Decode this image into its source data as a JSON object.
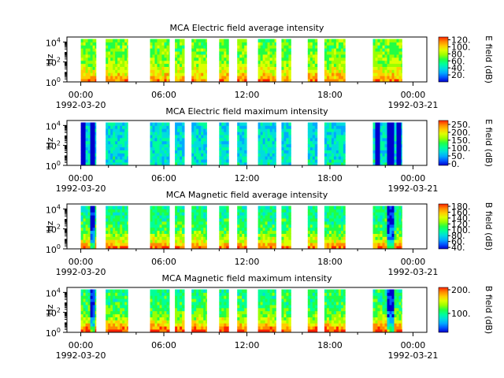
{
  "figure": {
    "background": "#ffffff"
  },
  "colormap": [
    "#0000cc",
    "#0055ff",
    "#00aaff",
    "#00dddd",
    "#00ff99",
    "#22ff44",
    "#99ff00",
    "#ddff00",
    "#ffcc00",
    "#ff8800",
    "#ff2200"
  ],
  "chart_data": [
    {
      "type": "heatmap",
      "title": "MCA  Electric field average intensity",
      "xlabel": "",
      "ylabel": "Hz",
      "x_ticks": [
        "00:00",
        "06:00",
        "12:00",
        "18:00",
        "00:00"
      ],
      "x_hours": [
        0,
        6,
        12,
        18,
        24
      ],
      "x_dates": [
        {
          "label": "1992-03-20",
          "hour": 0
        },
        {
          "label": "1992-03-21",
          "hour": 24
        }
      ],
      "xlim_hours": [
        -1,
        25
      ],
      "y_scale": "log",
      "ylim": [
        1,
        31622
      ],
      "y_ticks": [
        {
          "label": "10",
          "exp": "0",
          "value": 1
        },
        {
          "label": "10",
          "exp": "2",
          "value": 100
        },
        {
          "label": "10",
          "exp": "4",
          "value": 10000
        }
      ],
      "colorbar": {
        "label": "E field (dB)",
        "ticks": [
          "20.",
          "40.",
          "60.",
          "80.",
          "100.",
          "120."
        ],
        "tick_values": [
          20,
          40,
          60,
          80,
          100,
          120
        ],
        "range": [
          0,
          128
        ]
      },
      "data_segments_hours": [
        [
          0.0,
          1.1
        ],
        [
          1.8,
          3.4
        ],
        [
          5.0,
          6.4
        ],
        [
          6.8,
          7.5
        ],
        [
          8.0,
          9.1
        ],
        [
          10.0,
          10.7
        ],
        [
          11.3,
          12.0
        ],
        [
          12.8,
          14.1
        ],
        [
          14.5,
          15.2
        ],
        [
          16.4,
          17.1
        ],
        [
          17.6,
          19.1
        ],
        [
          21.1,
          23.2
        ]
      ],
      "spectrum_level": 0.55,
      "low_freq_enhancement": 0.35,
      "spike_hours": []
    },
    {
      "type": "heatmap",
      "title": "MCA  Electric field maximum intensity",
      "xlabel": "",
      "ylabel": "Hz",
      "x_ticks": [
        "00:00",
        "06:00",
        "12:00",
        "18:00",
        "00:00"
      ],
      "x_hours": [
        0,
        6,
        12,
        18,
        24
      ],
      "x_dates": [
        {
          "label": "1992-03-20",
          "hour": 0
        },
        {
          "label": "1992-03-21",
          "hour": 24
        }
      ],
      "xlim_hours": [
        -1,
        25
      ],
      "y_scale": "log",
      "ylim": [
        1,
        31622
      ],
      "y_ticks": [
        {
          "label": "10",
          "exp": "0",
          "value": 1
        },
        {
          "label": "10",
          "exp": "2",
          "value": 100
        },
        {
          "label": "10",
          "exp": "4",
          "value": 10000
        }
      ],
      "colorbar": {
        "label": "E field (dB)",
        "ticks": [
          "0.",
          "50.",
          "100.",
          "150.",
          "200.",
          "250."
        ],
        "tick_values": [
          0,
          50,
          100,
          150,
          200,
          250
        ],
        "range": [
          -10,
          275
        ]
      },
      "data_segments_hours": [
        [
          0.0,
          1.1
        ],
        [
          1.8,
          3.4
        ],
        [
          5.0,
          6.4
        ],
        [
          6.8,
          7.5
        ],
        [
          8.0,
          9.1
        ],
        [
          10.0,
          10.7
        ],
        [
          11.3,
          12.0
        ],
        [
          12.8,
          14.1
        ],
        [
          14.5,
          15.2
        ],
        [
          16.4,
          17.1
        ],
        [
          17.6,
          19.1
        ],
        [
          21.1,
          23.2
        ]
      ],
      "spectrum_level": 0.3,
      "low_freq_enhancement": 0.05,
      "spike_hours": [
        0.1,
        0.7,
        21.4,
        22.3,
        22.9
      ]
    },
    {
      "type": "heatmap",
      "title": "MCA  Magnetic field average intensity",
      "xlabel": "",
      "ylabel": "Hz",
      "x_ticks": [
        "00:00",
        "06:00",
        "12:00",
        "18:00",
        "00:00"
      ],
      "x_hours": [
        0,
        6,
        12,
        18,
        24
      ],
      "x_dates": [
        {
          "label": "1992-03-20",
          "hour": 0
        },
        {
          "label": "1992-03-21",
          "hour": 24
        }
      ],
      "xlim_hours": [
        -1,
        25
      ],
      "y_scale": "log",
      "ylim": [
        1,
        31622
      ],
      "y_ticks": [
        {
          "label": "10",
          "exp": "0",
          "value": 1
        },
        {
          "label": "10",
          "exp": "2",
          "value": 100
        },
        {
          "label": "10",
          "exp": "4",
          "value": 10000
        }
      ],
      "colorbar": {
        "label": "B field (dB)",
        "ticks": [
          "40.",
          "60.",
          "80.",
          "100.",
          "120.",
          "140.",
          "160.",
          "180."
        ],
        "tick_values": [
          40,
          60,
          80,
          100,
          120,
          140,
          160,
          180
        ],
        "range": [
          35,
          188
        ]
      },
      "data_segments_hours": [
        [
          0.0,
          1.1
        ],
        [
          1.8,
          3.4
        ],
        [
          5.0,
          6.4
        ],
        [
          6.8,
          7.5
        ],
        [
          8.0,
          9.1
        ],
        [
          10.0,
          10.7
        ],
        [
          11.3,
          12.0
        ],
        [
          12.8,
          14.1
        ],
        [
          14.5,
          15.2
        ],
        [
          16.4,
          17.1
        ],
        [
          17.6,
          19.1
        ],
        [
          21.1,
          23.2
        ]
      ],
      "spectrum_level": 0.42,
      "low_freq_enhancement": 0.5,
      "spike_hours": [
        0.7,
        22.3
      ]
    },
    {
      "type": "heatmap",
      "title": "MCA  Magnetic field maximum intensity",
      "xlabel": "",
      "ylabel": "Hz",
      "x_ticks": [
        "00:00",
        "06:00",
        "12:00",
        "18:00",
        "00:00"
      ],
      "x_hours": [
        0,
        6,
        12,
        18,
        24
      ],
      "x_dates": [
        {
          "label": "1992-03-20",
          "hour": 0
        },
        {
          "label": "1992-03-21",
          "hour": 24
        }
      ],
      "xlim_hours": [
        -1,
        25
      ],
      "y_scale": "log",
      "ylim": [
        1,
        31622
      ],
      "y_ticks": [
        {
          "label": "10",
          "exp": "0",
          "value": 1
        },
        {
          "label": "10",
          "exp": "2",
          "value": 100
        },
        {
          "label": "10",
          "exp": "4",
          "value": 10000
        }
      ],
      "colorbar": {
        "label": "B field (dB)",
        "ticks": [
          "100.",
          "200."
        ],
        "tick_values": [
          100,
          200
        ],
        "range": [
          20,
          210
        ]
      },
      "data_segments_hours": [
        [
          0.0,
          1.1
        ],
        [
          1.8,
          3.4
        ],
        [
          5.0,
          6.4
        ],
        [
          6.8,
          7.5
        ],
        [
          8.0,
          9.1
        ],
        [
          10.0,
          10.7
        ],
        [
          11.3,
          12.0
        ],
        [
          12.8,
          14.1
        ],
        [
          14.5,
          15.2
        ],
        [
          16.4,
          17.1
        ],
        [
          17.6,
          19.1
        ],
        [
          21.1,
          23.2
        ]
      ],
      "spectrum_level": 0.45,
      "low_freq_enhancement": 0.55,
      "spike_hours": [
        0.7,
        22.3
      ]
    }
  ]
}
